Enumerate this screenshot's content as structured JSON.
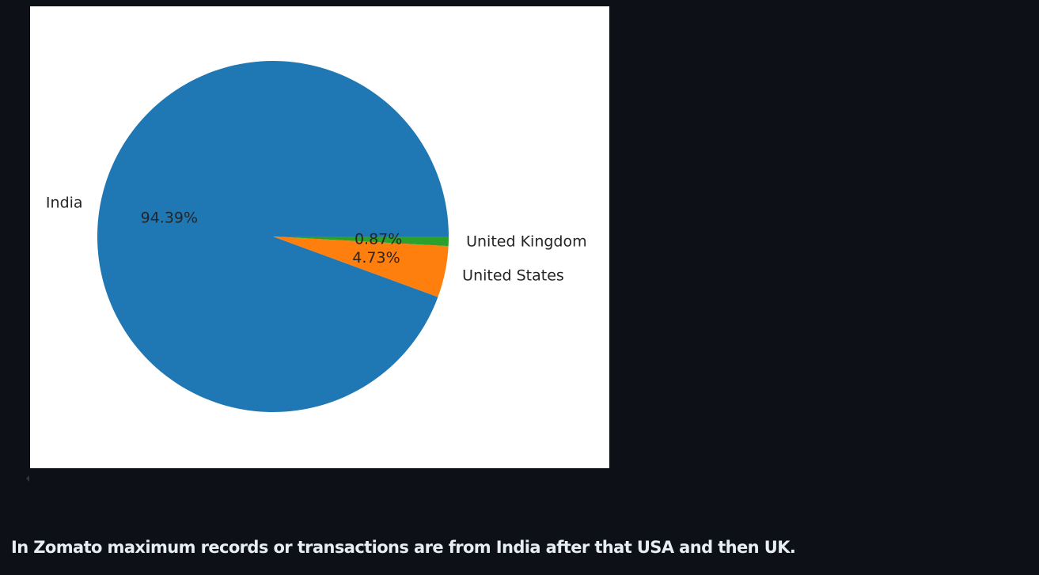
{
  "chart_data": {
    "type": "pie",
    "categories": [
      "India",
      "United States",
      "United Kingdom"
    ],
    "values": [
      94.39,
      4.73,
      0.87
    ],
    "percent_labels": [
      "94.39%",
      "4.73%",
      "0.87%"
    ],
    "colors": [
      "#1f77b4",
      "#ff7f0e",
      "#2ca02c"
    ],
    "start_angle": 0,
    "direction": "counterclockwise",
    "title": "",
    "legend": "none"
  },
  "caption": {
    "text": "In Zomato maximum records or transactions are from India after that USA and then UK."
  },
  "icons": {
    "scroll_marker": "caret-left-icon"
  }
}
